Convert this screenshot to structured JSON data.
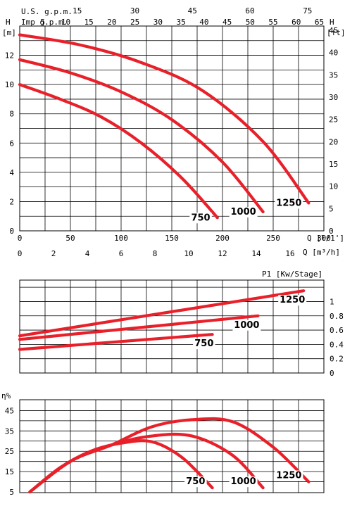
{
  "chart_data": [
    {
      "type": "line",
      "title": "",
      "top_axis_1": {
        "label": "U.S. g.p.m.",
        "ticks": [
          15,
          30,
          45,
          60,
          75
        ]
      },
      "top_axis_2": {
        "label": "Imp g.p.m.",
        "ticks": [
          5,
          10,
          15,
          20,
          25,
          30,
          35,
          40,
          45,
          50,
          55,
          60,
          65
        ]
      },
      "y_left": {
        "label": "H",
        "unit": "[m]",
        "ticks": [
          0,
          2,
          4,
          6,
          8,
          10,
          12
        ],
        "range": [
          0,
          14
        ]
      },
      "y_right": {
        "label": "H",
        "unit": "[ft]",
        "ticks": [
          0,
          5,
          10,
          15,
          20,
          25,
          30,
          35,
          40,
          45
        ]
      },
      "x_lpm": {
        "label": "Q [l/1']",
        "ticks": [
          0,
          50,
          100,
          150,
          200,
          250,
          300
        ],
        "range": [
          0,
          300
        ]
      },
      "x_m3h": {
        "label": "Q [m³/h]",
        "ticks": [
          0,
          2,
          4,
          6,
          8,
          10,
          12,
          14,
          16
        ]
      },
      "grid": true,
      "series": [
        {
          "name": "750",
          "x": [
            0,
            40,
            80,
            120,
            160,
            195
          ],
          "y": [
            10.0,
            9.0,
            7.8,
            6.0,
            3.6,
            0.9
          ]
        },
        {
          "name": "1000",
          "x": [
            0,
            50,
            100,
            150,
            200,
            240
          ],
          "y": [
            11.7,
            10.8,
            9.5,
            7.6,
            4.7,
            1.3
          ]
        },
        {
          "name": "1250",
          "x": [
            0,
            60,
            120,
            180,
            240,
            285
          ],
          "y": [
            13.4,
            12.7,
            11.5,
            9.6,
            6.1,
            1.9
          ]
        }
      ]
    },
    {
      "type": "line",
      "title": "",
      "y_right": {
        "label": "P1 [Kw/Stage]",
        "ticks": [
          0,
          0.2,
          0.4,
          0.6,
          0.8,
          1
        ]
      },
      "grid": true,
      "series": [
        {
          "name": "750",
          "x": [
            0,
            190
          ],
          "y": [
            0.33,
            0.54
          ]
        },
        {
          "name": "1000",
          "x": [
            0,
            235
          ],
          "y": [
            0.47,
            0.8
          ]
        },
        {
          "name": "1250",
          "x": [
            0,
            280
          ],
          "y": [
            0.52,
            1.15
          ]
        }
      ]
    },
    {
      "type": "line",
      "title": "",
      "y_left": {
        "label": "η%",
        "ticks": [
          5,
          15,
          25,
          35,
          45
        ]
      },
      "grid": true,
      "series": [
        {
          "name": "750",
          "x": [
            10,
            40,
            70,
            100,
            130,
            160,
            190
          ],
          "y": [
            5,
            17,
            25,
            29,
            29.7,
            22,
            7
          ]
        },
        {
          "name": "1000",
          "x": [
            10,
            50,
            90,
            130,
            170,
            210,
            240
          ],
          "y": [
            5,
            20,
            28,
            32.5,
            32.5,
            23,
            7
          ]
        },
        {
          "name": "1250",
          "x": [
            10,
            50,
            90,
            130,
            170,
            210,
            250,
            285
          ],
          "y": [
            5,
            20,
            28,
            37,
            40.5,
            39.5,
            27,
            10
          ]
        }
      ]
    }
  ]
}
